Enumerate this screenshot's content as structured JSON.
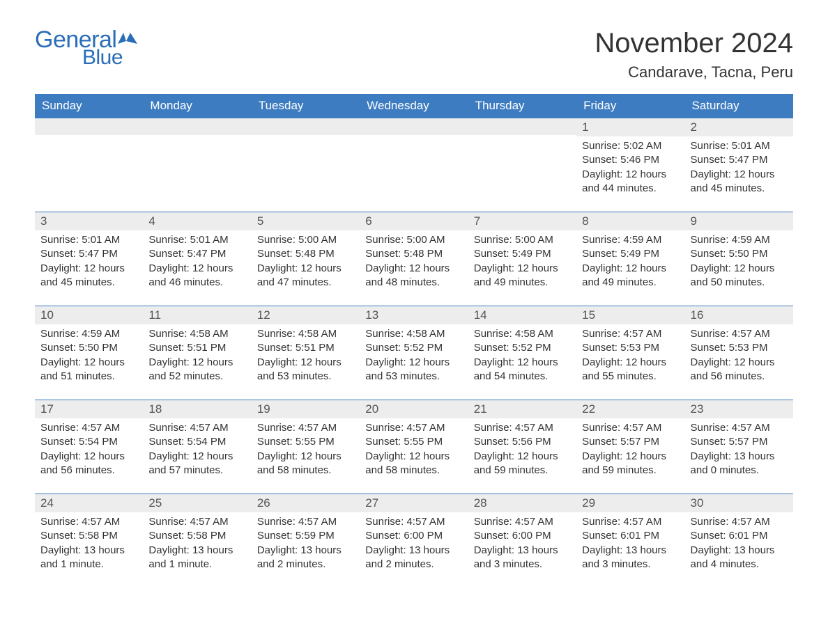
{
  "logo": {
    "general": "General",
    "blue": "Blue",
    "brand_color": "#2a6db8"
  },
  "header": {
    "month_title": "November 2024",
    "location": "Candarave, Tacna, Peru"
  },
  "colors": {
    "header_bg": "#3d7cc0",
    "header_fg": "#ffffff",
    "daynum_bg": "#ededed",
    "daynum_border": "#3d7cc0",
    "text": "#333333",
    "page_bg": "#ffffff"
  },
  "typography": {
    "month_title_fontsize": 40,
    "location_fontsize": 22,
    "weekday_fontsize": 17,
    "daynum_fontsize": 17,
    "body_fontsize": 15,
    "font_family": "Arial"
  },
  "weekdays": [
    "Sunday",
    "Monday",
    "Tuesday",
    "Wednesday",
    "Thursday",
    "Friday",
    "Saturday"
  ],
  "labels": {
    "sunrise": "Sunrise:",
    "sunset": "Sunset:",
    "daylight": "Daylight:"
  },
  "weeks": [
    [
      null,
      null,
      null,
      null,
      null,
      {
        "day": "1",
        "sunrise": "5:02 AM",
        "sunset": "5:46 PM",
        "daylight": "12 hours and 44 minutes."
      },
      {
        "day": "2",
        "sunrise": "5:01 AM",
        "sunset": "5:47 PM",
        "daylight": "12 hours and 45 minutes."
      }
    ],
    [
      {
        "day": "3",
        "sunrise": "5:01 AM",
        "sunset": "5:47 PM",
        "daylight": "12 hours and 45 minutes."
      },
      {
        "day": "4",
        "sunrise": "5:01 AM",
        "sunset": "5:47 PM",
        "daylight": "12 hours and 46 minutes."
      },
      {
        "day": "5",
        "sunrise": "5:00 AM",
        "sunset": "5:48 PM",
        "daylight": "12 hours and 47 minutes."
      },
      {
        "day": "6",
        "sunrise": "5:00 AM",
        "sunset": "5:48 PM",
        "daylight": "12 hours and 48 minutes."
      },
      {
        "day": "7",
        "sunrise": "5:00 AM",
        "sunset": "5:49 PM",
        "daylight": "12 hours and 49 minutes."
      },
      {
        "day": "8",
        "sunrise": "4:59 AM",
        "sunset": "5:49 PM",
        "daylight": "12 hours and 49 minutes."
      },
      {
        "day": "9",
        "sunrise": "4:59 AM",
        "sunset": "5:50 PM",
        "daylight": "12 hours and 50 minutes."
      }
    ],
    [
      {
        "day": "10",
        "sunrise": "4:59 AM",
        "sunset": "5:50 PM",
        "daylight": "12 hours and 51 minutes."
      },
      {
        "day": "11",
        "sunrise": "4:58 AM",
        "sunset": "5:51 PM",
        "daylight": "12 hours and 52 minutes."
      },
      {
        "day": "12",
        "sunrise": "4:58 AM",
        "sunset": "5:51 PM",
        "daylight": "12 hours and 53 minutes."
      },
      {
        "day": "13",
        "sunrise": "4:58 AM",
        "sunset": "5:52 PM",
        "daylight": "12 hours and 53 minutes."
      },
      {
        "day": "14",
        "sunrise": "4:58 AM",
        "sunset": "5:52 PM",
        "daylight": "12 hours and 54 minutes."
      },
      {
        "day": "15",
        "sunrise": "4:57 AM",
        "sunset": "5:53 PM",
        "daylight": "12 hours and 55 minutes."
      },
      {
        "day": "16",
        "sunrise": "4:57 AM",
        "sunset": "5:53 PM",
        "daylight": "12 hours and 56 minutes."
      }
    ],
    [
      {
        "day": "17",
        "sunrise": "4:57 AM",
        "sunset": "5:54 PM",
        "daylight": "12 hours and 56 minutes."
      },
      {
        "day": "18",
        "sunrise": "4:57 AM",
        "sunset": "5:54 PM",
        "daylight": "12 hours and 57 minutes."
      },
      {
        "day": "19",
        "sunrise": "4:57 AM",
        "sunset": "5:55 PM",
        "daylight": "12 hours and 58 minutes."
      },
      {
        "day": "20",
        "sunrise": "4:57 AM",
        "sunset": "5:55 PM",
        "daylight": "12 hours and 58 minutes."
      },
      {
        "day": "21",
        "sunrise": "4:57 AM",
        "sunset": "5:56 PM",
        "daylight": "12 hours and 59 minutes."
      },
      {
        "day": "22",
        "sunrise": "4:57 AM",
        "sunset": "5:57 PM",
        "daylight": "12 hours and 59 minutes."
      },
      {
        "day": "23",
        "sunrise": "4:57 AM",
        "sunset": "5:57 PM",
        "daylight": "13 hours and 0 minutes."
      }
    ],
    [
      {
        "day": "24",
        "sunrise": "4:57 AM",
        "sunset": "5:58 PM",
        "daylight": "13 hours and 1 minute."
      },
      {
        "day": "25",
        "sunrise": "4:57 AM",
        "sunset": "5:58 PM",
        "daylight": "13 hours and 1 minute."
      },
      {
        "day": "26",
        "sunrise": "4:57 AM",
        "sunset": "5:59 PM",
        "daylight": "13 hours and 2 minutes."
      },
      {
        "day": "27",
        "sunrise": "4:57 AM",
        "sunset": "6:00 PM",
        "daylight": "13 hours and 2 minutes."
      },
      {
        "day": "28",
        "sunrise": "4:57 AM",
        "sunset": "6:00 PM",
        "daylight": "13 hours and 3 minutes."
      },
      {
        "day": "29",
        "sunrise": "4:57 AM",
        "sunset": "6:01 PM",
        "daylight": "13 hours and 3 minutes."
      },
      {
        "day": "30",
        "sunrise": "4:57 AM",
        "sunset": "6:01 PM",
        "daylight": "13 hours and 4 minutes."
      }
    ]
  ]
}
